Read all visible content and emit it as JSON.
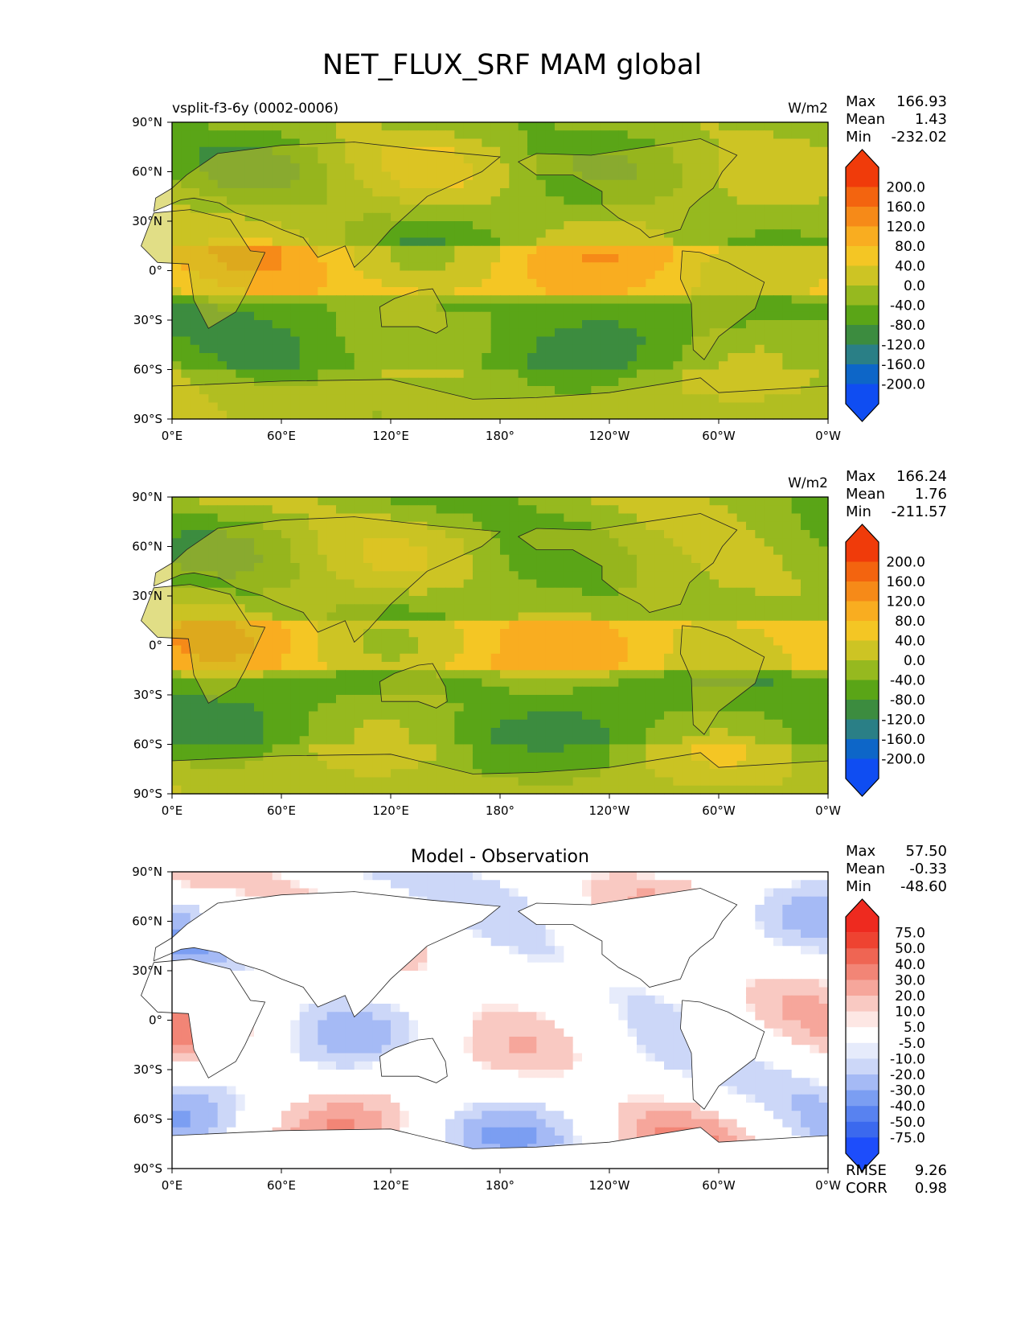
{
  "title": "NET_FLUX_SRF MAM global",
  "colors": {
    "main_levels": [
      "#0f4df2",
      "#0d66c8",
      "#2a7f86",
      "#3c8c3f",
      "#5aa517",
      "#96b91f",
      "#cdc424",
      "#f4c624",
      "#f9ad20",
      "#f68a18",
      "#f3640f",
      "#f03b0a"
    ],
    "diff_levels": [
      "#1d4dfb",
      "#3b69ee",
      "#5882f0",
      "#7b9ef2",
      "#a5baf5",
      "#ccd7f8",
      "#e6ebfb",
      "#ffffff",
      "#fde7e4",
      "#f9c9c2",
      "#f6a69b",
      "#f28576",
      "#ef6553",
      "#ee4331",
      "#ee2a1f"
    ]
  },
  "panels": [
    {
      "left_title": "vsplit-f3-6y (0002-0006)",
      "center_title": "",
      "units": "W/m2",
      "stats": [
        [
          "Max",
          "166.93"
        ],
        [
          "Mean",
          "1.43"
        ],
        [
          "Min",
          "-232.02"
        ]
      ],
      "colorbar_ticks": [
        "200.0",
        "160.0",
        "120.0",
        "80.0",
        "40.0",
        "0.0",
        "-40.0",
        "-80.0",
        "-120.0",
        "-160.0",
        "-200.0"
      ],
      "kind": "main"
    },
    {
      "left_title": "",
      "center_title": "",
      "units": "W/m2",
      "stats": [
        [
          "Max",
          "166.24"
        ],
        [
          "Mean",
          "1.76"
        ],
        [
          "Min",
          "-211.57"
        ]
      ],
      "colorbar_ticks": [
        "200.0",
        "160.0",
        "120.0",
        "80.0",
        "40.0",
        "0.0",
        "-40.0",
        "-80.0",
        "-120.0",
        "-160.0",
        "-200.0"
      ],
      "kind": "main"
    },
    {
      "left_title": "",
      "center_title": "Model - Observation",
      "units": "",
      "stats": [
        [
          "Max",
          "57.50"
        ],
        [
          "Mean",
          "-0.33"
        ],
        [
          "Min",
          "-48.60"
        ]
      ],
      "colorbar_ticks": [
        "75.0",
        "50.0",
        "40.0",
        "30.0",
        "20.0",
        "10.0",
        "5.0",
        "-5.0",
        "-10.0",
        "-20.0",
        "-30.0",
        "-40.0",
        "-50.0",
        "-75.0"
      ],
      "extra_stats": [
        [
          "RMSE",
          "9.26"
        ],
        [
          "CORR",
          "0.98"
        ]
      ],
      "kind": "diff"
    }
  ],
  "chart_data": {
    "type": "heatmap",
    "title": "NET_FLUX_SRF MAM global",
    "x_axis_ticks": [
      "0°E",
      "60°E",
      "120°E",
      "180°",
      "120°W",
      "60°W",
      "0°W"
    ],
    "y_axis_ticks": [
      "90°N",
      "60°N",
      "30°N",
      "0°",
      "30°S",
      "60°S",
      "90°S"
    ],
    "xlim": [
      0,
      360
    ],
    "ylim": [
      -90,
      90
    ],
    "panels": [
      {
        "left_title": "vsplit-f3-6y (0002-0006)",
        "units": "W/m2",
        "max": 166.93,
        "mean": 1.43,
        "min": -232.02,
        "contour_levels": [
          -200,
          -160,
          -120,
          -80,
          -40,
          0,
          40,
          80,
          120,
          160,
          200
        ]
      },
      {
        "units": "W/m2",
        "max": 166.24,
        "mean": 1.76,
        "min": -211.57,
        "contour_levels": [
          -200,
          -160,
          -120,
          -80,
          -40,
          0,
          40,
          80,
          120,
          160,
          200
        ]
      },
      {
        "center_title": "Model - Observation",
        "max": 57.5,
        "mean": -0.33,
        "min": -48.6,
        "rmse": 9.26,
        "corr": 0.98,
        "contour_levels": [
          -75,
          -50,
          -40,
          -30,
          -20,
          -10,
          -5,
          5,
          10,
          20,
          30,
          40,
          50,
          75
        ]
      }
    ]
  }
}
